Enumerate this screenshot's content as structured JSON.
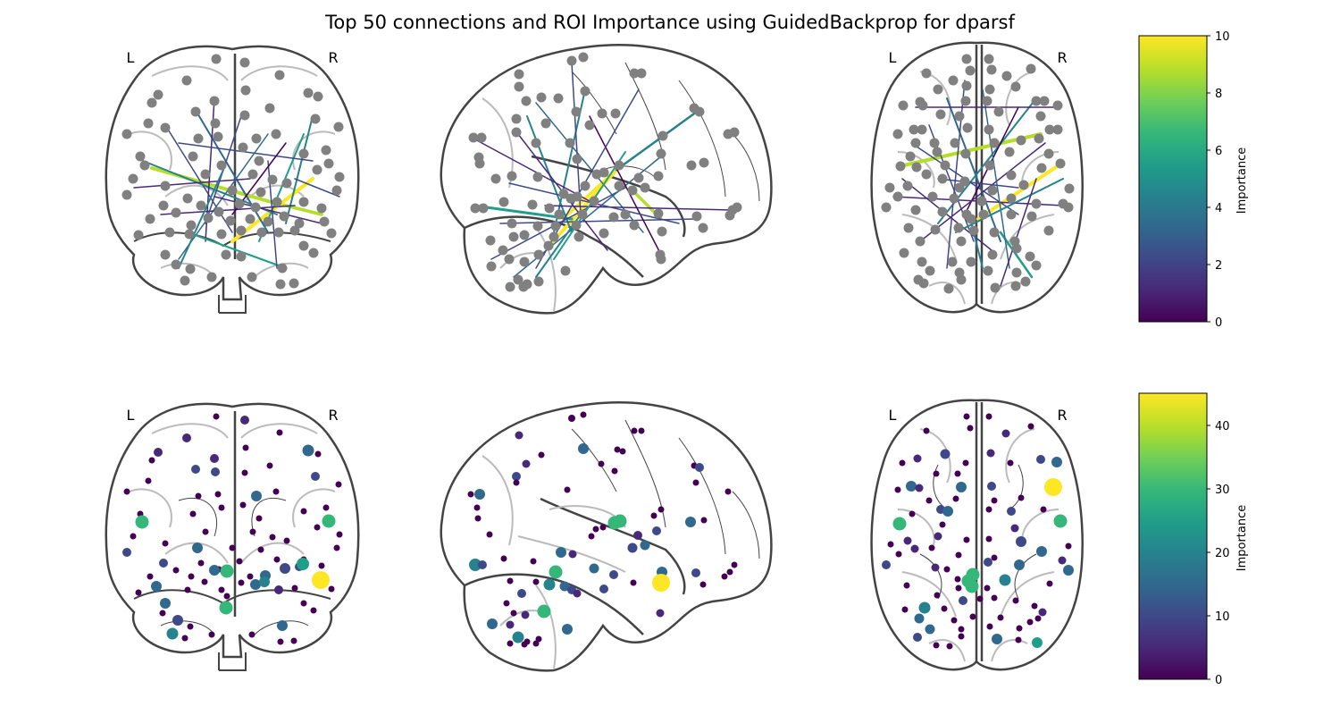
{
  "title": "Top 50 connections and ROI Importance using GuidedBackprop for dparsf",
  "hemisphere_labels": {
    "left": "L",
    "right": "R"
  },
  "colorbars": [
    {
      "label": "Importance",
      "ticks": [
        "0",
        "2",
        "4",
        "6",
        "8",
        "10"
      ],
      "range": [
        0,
        10
      ]
    },
    {
      "label": "Importance",
      "ticks": [
        "0",
        "10",
        "20",
        "30",
        "40"
      ],
      "range": [
        0,
        45
      ]
    }
  ],
  "colormap": [
    "#440154",
    "#482878",
    "#3e4989",
    "#31688e",
    "#26828e",
    "#1f9e89",
    "#35b779",
    "#6ece58",
    "#b5de2b",
    "#fde725"
  ]
}
